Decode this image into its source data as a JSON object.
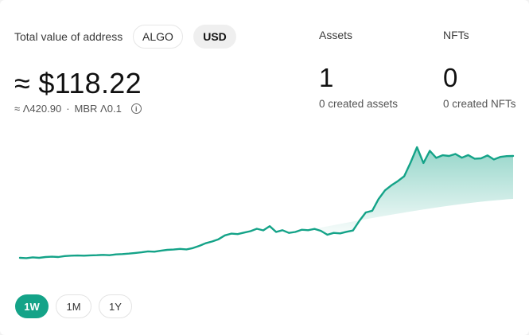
{
  "header": {
    "total_label": "Total value of address",
    "currency_options": [
      {
        "label": "ALGO",
        "selected": false
      },
      {
        "label": "USD",
        "selected": true
      }
    ]
  },
  "value": {
    "main": "≈ $118.22",
    "algo_amount": "≈ Ʌ420.90",
    "separator": "·",
    "mbr": "MBR Ʌ0.1",
    "info_icon": "i"
  },
  "stats": {
    "assets": {
      "title": "Assets",
      "count": "1",
      "sub": "0 created assets"
    },
    "nfts": {
      "title": "NFTs",
      "count": "0",
      "sub": "0 created NFTs"
    }
  },
  "chart_data": {
    "type": "area",
    "title": "",
    "xlabel": "",
    "ylabel": "",
    "grid": false,
    "color": "#14a388",
    "values": [
      21.5,
      21.3,
      21.8,
      21.5,
      22.0,
      22.2,
      22.0,
      22.6,
      22.8,
      22.9,
      22.8,
      23.0,
      23.1,
      23.3,
      23.1,
      23.6,
      23.8,
      24.1,
      24.5,
      24.9,
      25.5,
      25.3,
      25.9,
      26.4,
      26.6,
      27.0,
      26.7,
      27.5,
      28.9,
      30.5,
      31.6,
      33.0,
      35.4,
      36.5,
      36.2,
      37.1,
      38.0,
      39.5,
      38.5,
      41.1,
      37.5,
      38.6,
      36.9,
      37.5,
      38.9,
      38.6,
      39.4,
      38.2,
      35.8,
      36.9,
      36.6,
      37.6,
      38.4,
      44.4,
      49.6,
      50.6,
      57.9,
      63.3,
      66.4,
      69.0,
      72.0,
      80.6,
      90.0,
      80.2,
      87.8,
      83.4,
      85.0,
      84.6,
      85.8,
      83.5,
      85.1,
      82.9,
      83.1,
      84.9,
      82.4,
      84.0,
      84.5,
      84.6
    ]
  },
  "ranges": [
    {
      "label": "1W",
      "active": true
    },
    {
      "label": "1M",
      "active": false
    },
    {
      "label": "1Y",
      "active": false
    }
  ]
}
